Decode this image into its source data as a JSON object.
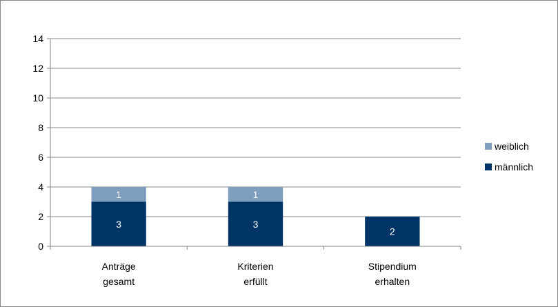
{
  "chart_data": {
    "type": "bar",
    "stacked": true,
    "categories": [
      [
        "Anträge",
        "gesamt"
      ],
      [
        "Kriterien",
        "erfüllt"
      ],
      [
        "Stipendium",
        "erhalten"
      ]
    ],
    "series": [
      {
        "name": "männlich",
        "values": [
          3,
          3,
          2
        ],
        "color": "#003366",
        "label_color": "#ffffff"
      },
      {
        "name": "weiblich",
        "values": [
          1,
          1,
          0
        ],
        "color": "#7f9fbe",
        "label_color": "#ffffff"
      }
    ],
    "title": "",
    "xlabel": "",
    "ylabel": "",
    "ylim": [
      0,
      14
    ],
    "yticks": [
      0,
      2,
      4,
      6,
      8,
      10,
      12,
      14
    ],
    "grid": true,
    "legend_position": "right",
    "legend_order": [
      "weiblich",
      "männlich"
    ]
  }
}
